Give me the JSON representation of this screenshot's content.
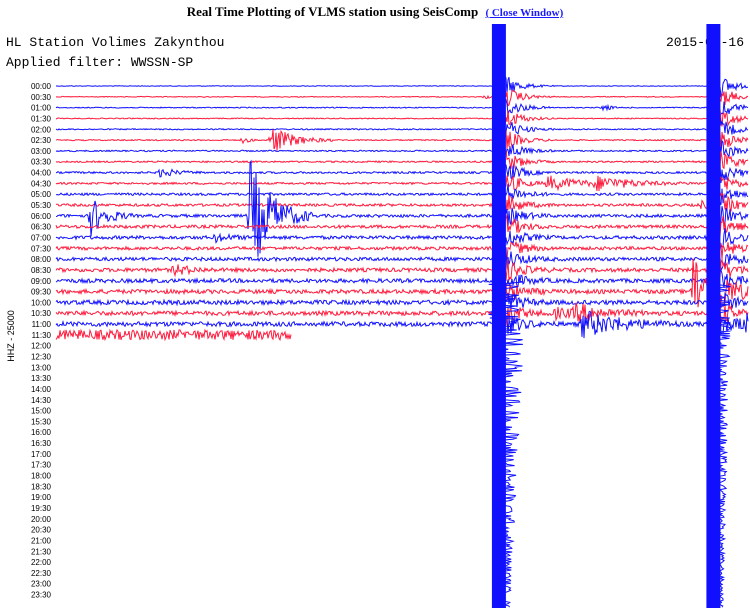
{
  "header": {
    "title": "Real Time Plotting of VLMS station using SeisComp",
    "close_link": "( Close Window)"
  },
  "chart_data": {
    "type": "line",
    "station_label": "HL Station Volimes Zakynthou",
    "filter_label": "Applied filter: WWSSN-SP",
    "date": "2015-03-16",
    "channel_label": "HHZ - 25000",
    "row_labels": [
      "00:00",
      "00:30",
      "01:00",
      "01:30",
      "02:00",
      "02:30",
      "03:00",
      "03:30",
      "04:00",
      "04:30",
      "05:00",
      "05:30",
      "06:00",
      "06:30",
      "07:00",
      "07:30",
      "08:00",
      "08:30",
      "09:00",
      "09:30",
      "10:00",
      "10:30",
      "11:00",
      "11:30",
      "12:00",
      "12:30",
      "13:00",
      "13:30",
      "14:00",
      "14:30",
      "15:00",
      "15:30",
      "16:00",
      "16:30",
      "17:00",
      "17:30",
      "18:00",
      "18:30",
      "19:00",
      "19:30",
      "20:00",
      "20:30",
      "21:00",
      "21:30",
      "22:00",
      "22:30",
      "23:00",
      "23:30"
    ],
    "trace_colors": [
      "#1010ff",
      "#ff1a3c"
    ],
    "rows_with_data": 24,
    "last_row_fraction": 0.34,
    "noise_levels": [
      0.3,
      0.4,
      0.5,
      0.5,
      0.6,
      0.6,
      0.7,
      0.8,
      1.0,
      1.0,
      1.2,
      1.3,
      1.5,
      1.6,
      1.7,
      1.6,
      1.8,
      1.9,
      2.0,
      2.1,
      2.2,
      2.2,
      2.3,
      2.5
    ],
    "events": [
      {
        "row": 1,
        "x": 0.62,
        "amp": 2,
        "width": 0.01
      },
      {
        "row": 2,
        "x": 0.79,
        "amp": 4,
        "width": 0.01
      },
      {
        "row": 5,
        "x": 0.27,
        "amp": 3,
        "width": 0.01
      },
      {
        "row": 5,
        "x": 0.31,
        "amp": 15,
        "width": 0.03
      },
      {
        "row": 8,
        "x": 0.15,
        "amp": 5,
        "width": 0.02
      },
      {
        "row": 9,
        "x": 0.71,
        "amp": 7,
        "width": 0.05
      },
      {
        "row": 9,
        "x": 0.78,
        "amp": 6,
        "width": 0.05
      },
      {
        "row": 11,
        "x": 0.93,
        "amp": 4,
        "width": 0.02
      },
      {
        "row": 12,
        "x": 0.05,
        "amp": 20,
        "width": 0.02
      },
      {
        "row": 12,
        "x": 0.28,
        "amp": 60,
        "width": 0.03
      },
      {
        "row": 14,
        "x": 0.23,
        "amp": 4,
        "width": 0.02
      },
      {
        "row": 17,
        "x": 0.17,
        "amp": 6,
        "width": 0.02
      },
      {
        "row": 19,
        "x": 0.92,
        "amp": 40,
        "width": 0.03
      },
      {
        "row": 21,
        "x": 0.75,
        "amp": 8,
        "width": 0.04
      },
      {
        "row": 21,
        "x": 0.72,
        "amp": 5,
        "width": 0.03
      },
      {
        "row": 22,
        "x": 0.76,
        "amp": 14,
        "width": 0.05
      },
      {
        "row": 22,
        "x": 0.99,
        "amp": 12,
        "width": 0.02
      }
    ],
    "big_events": [
      {
        "x": 0.64,
        "label": "saturated",
        "decay_rows": 3
      },
      {
        "x": 0.95,
        "label": "saturated",
        "decay_rows": 2
      }
    ]
  }
}
